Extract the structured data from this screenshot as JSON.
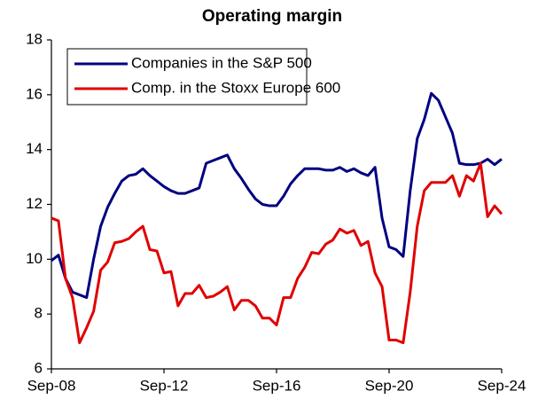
{
  "chart_data": {
    "type": "line",
    "title": "Operating margin",
    "categories": [
      "Sep-08",
      null,
      null,
      null,
      null,
      null,
      null,
      null,
      null,
      null,
      null,
      null,
      null,
      null,
      null,
      null,
      "Sep-12",
      null,
      null,
      null,
      null,
      null,
      null,
      null,
      null,
      null,
      null,
      null,
      null,
      null,
      null,
      null,
      "Sep-16",
      null,
      null,
      null,
      null,
      null,
      null,
      null,
      null,
      null,
      null,
      null,
      null,
      null,
      null,
      null,
      "Sep-20",
      null,
      null,
      null,
      null,
      null,
      null,
      null,
      null,
      null,
      null,
      null,
      null,
      null,
      null,
      null,
      "Sep-24"
    ],
    "series": [
      {
        "name": "Companies in the S&P 500",
        "color": "#000080",
        "values": [
          9.95,
          10.15,
          9.3,
          8.8,
          8.7,
          8.6,
          10.0,
          11.2,
          11.9,
          12.4,
          12.85,
          13.05,
          13.1,
          13.3,
          13.05,
          12.85,
          12.65,
          12.5,
          12.4,
          12.4,
          12.5,
          12.6,
          13.5,
          13.6,
          13.7,
          13.8,
          13.3,
          12.95,
          12.55,
          12.2,
          12.0,
          11.95,
          11.95,
          12.3,
          12.75,
          13.05,
          13.3,
          13.3,
          13.3,
          13.25,
          13.25,
          13.35,
          13.2,
          13.3,
          13.15,
          13.05,
          13.35,
          11.5,
          10.45,
          10.35,
          10.1,
          12.5,
          14.4,
          15.1,
          16.05,
          15.8,
          15.2,
          14.6,
          13.5,
          13.45,
          13.45,
          13.5,
          13.65,
          13.45,
          13.65
        ]
      },
      {
        "name": "Comp. in the Stoxx Europe 600",
        "color": "#e00000",
        "values": [
          11.5,
          11.4,
          9.3,
          8.6,
          6.95,
          7.5,
          8.1,
          9.6,
          9.9,
          10.6,
          10.65,
          10.75,
          11.0,
          11.2,
          10.35,
          10.3,
          9.5,
          9.55,
          8.3,
          8.75,
          8.75,
          9.05,
          8.6,
          8.65,
          8.8,
          9.0,
          8.15,
          8.5,
          8.5,
          8.3,
          7.85,
          7.85,
          7.6,
          8.6,
          8.6,
          9.3,
          9.7,
          10.25,
          10.2,
          10.55,
          10.7,
          11.1,
          10.95,
          11.05,
          10.5,
          10.65,
          9.5,
          9.0,
          7.05,
          7.05,
          6.95,
          8.8,
          11.2,
          12.5,
          12.8,
          12.8,
          12.8,
          13.05,
          12.3,
          13.05,
          12.85,
          13.5,
          11.55,
          11.95,
          11.65
        ]
      }
    ],
    "ylim": [
      6,
      18
    ],
    "yticks": [
      6,
      8,
      10,
      12,
      14,
      16,
      18
    ],
    "grid": false,
    "legend": "upper left"
  }
}
